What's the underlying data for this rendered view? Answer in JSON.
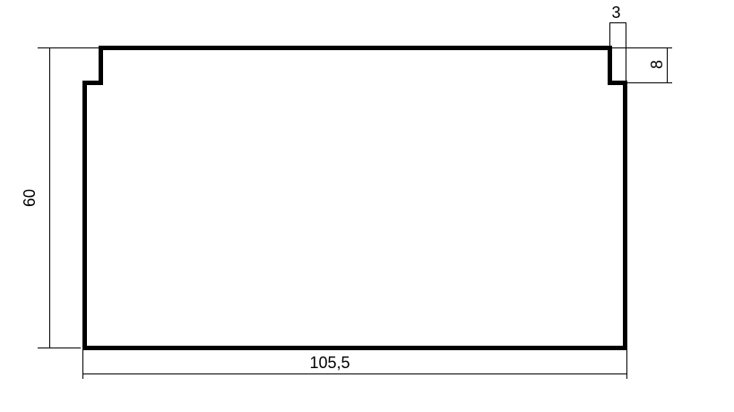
{
  "drawing": {
    "type": "technical-dimension-drawing",
    "background_color": "#ffffff",
    "line_color": "#000000",
    "dimensions": {
      "height": {
        "label": "60"
      },
      "width": {
        "label": "105,5"
      },
      "notch_width": {
        "label": "3"
      },
      "notch_depth": {
        "label": "8"
      }
    }
  }
}
